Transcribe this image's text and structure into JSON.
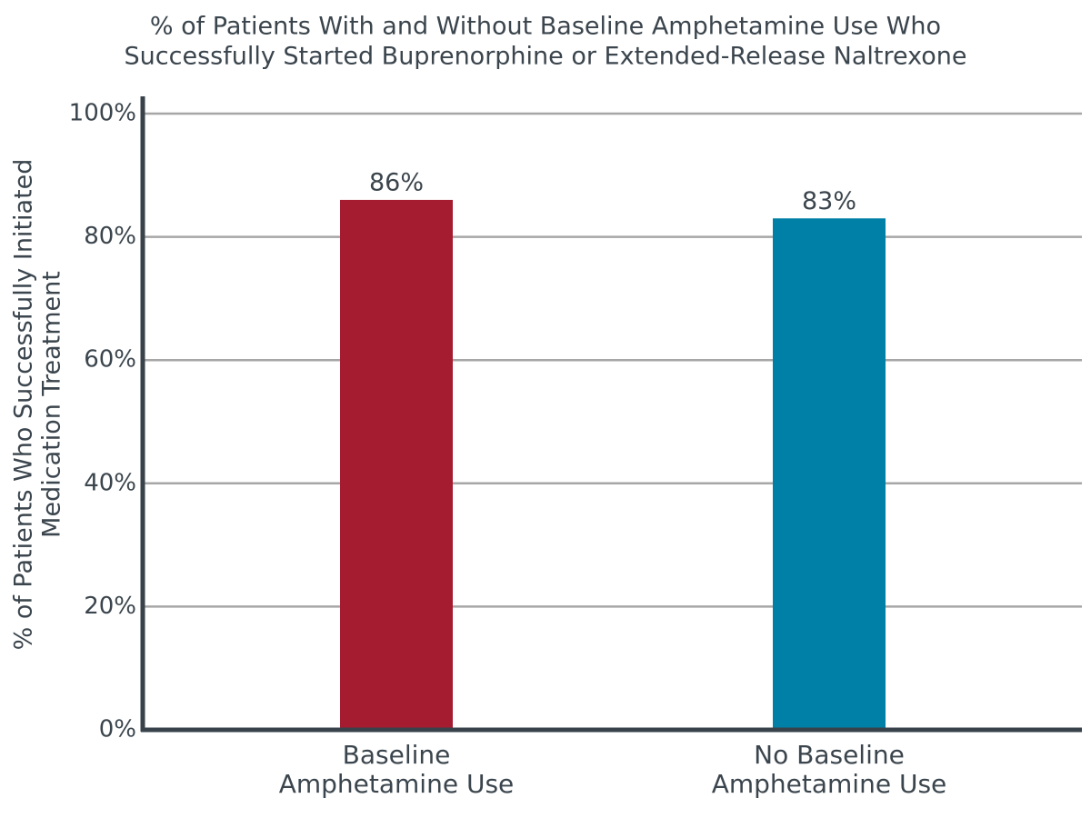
{
  "chart_data": {
    "type": "bar",
    "title": [
      "% of Patients With and Without Baseline Amphetamine Use Who",
      "Successfully Started Buprenorphine or Extended-Release Naltrexone"
    ],
    "y_label": [
      "% of Patients Who Successfully Initiated",
      "Medication Treatment"
    ],
    "categories": [
      [
        "Baseline",
        "Amphetamine Use"
      ],
      [
        "No Baseline",
        "Amphetamine Use"
      ]
    ],
    "values": [
      86,
      83
    ],
    "value_labels": [
      "86%",
      "83%"
    ],
    "colors": [
      "#a51c30",
      "#0080a6"
    ],
    "ylim": [
      0,
      100
    ],
    "yticks": [
      {
        "value": 0,
        "label": "0%"
      },
      {
        "value": 20,
        "label": "20%"
      },
      {
        "value": 40,
        "label": "40%"
      },
      {
        "value": 60,
        "label": "60%"
      },
      {
        "value": 80,
        "label": "80%"
      },
      {
        "value": 100,
        "label": "100%"
      }
    ],
    "grid": true
  }
}
